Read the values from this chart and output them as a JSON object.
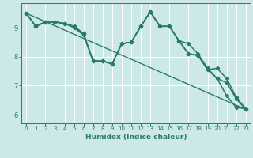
{
  "bg_color": "#cce8e8",
  "grid_color": "#ffffff",
  "line_color": "#2a7a6a",
  "xlabel": "Humidex (Indice chaleur)",
  "xlim": [
    -0.5,
    23.5
  ],
  "ylim": [
    5.7,
    9.85
  ],
  "yticks": [
    6,
    7,
    8,
    9
  ],
  "xticks": [
    0,
    1,
    2,
    3,
    4,
    5,
    6,
    7,
    8,
    9,
    10,
    11,
    12,
    13,
    14,
    15,
    16,
    17,
    18,
    19,
    20,
    21,
    22,
    23
  ],
  "lines": [
    {
      "x": [
        0,
        1,
        2,
        3,
        4,
        5,
        6,
        7,
        8,
        9,
        10,
        11,
        12,
        13,
        14,
        15,
        16,
        17,
        18,
        19,
        20,
        21,
        22,
        23
      ],
      "y": [
        9.5,
        9.05,
        9.2,
        9.2,
        9.15,
        9.05,
        8.8,
        7.85,
        7.85,
        7.75,
        8.45,
        8.5,
        9.05,
        9.55,
        9.05,
        9.05,
        8.55,
        8.1,
        8.05,
        7.55,
        7.6,
        7.25,
        6.6,
        6.2
      ],
      "marker": "D",
      "markersize": 2.2,
      "linewidth": 1.1
    },
    {
      "x": [
        0,
        1,
        2,
        3,
        4,
        5,
        6,
        7,
        8,
        9,
        10,
        11,
        12,
        13,
        14,
        15,
        16,
        17,
        18,
        19,
        20,
        21,
        22,
        23
      ],
      "y": [
        9.5,
        9.05,
        9.2,
        9.2,
        9.15,
        9.05,
        8.8,
        7.85,
        7.85,
        7.75,
        8.45,
        8.5,
        9.05,
        9.55,
        9.05,
        9.05,
        8.55,
        8.1,
        8.05,
        7.55,
        7.25,
        7.1,
        6.55,
        6.18
      ],
      "marker": "D",
      "markersize": 2.2,
      "linewidth": 1.1
    },
    {
      "x": [
        0,
        23
      ],
      "y": [
        9.5,
        6.18
      ],
      "marker": null,
      "markersize": 0,
      "linewidth": 1.0
    },
    {
      "x": [
        0,
        1,
        2,
        3,
        4,
        5,
        6,
        7,
        8,
        9,
        10,
        11,
        12,
        13,
        14,
        15,
        16,
        17,
        18,
        19,
        20,
        21,
        22,
        23
      ],
      "y": [
        9.5,
        9.05,
        9.2,
        9.2,
        9.15,
        9.0,
        8.75,
        7.85,
        7.85,
        7.75,
        8.45,
        8.5,
        9.05,
        9.55,
        9.05,
        9.05,
        8.55,
        8.45,
        8.1,
        7.6,
        7.25,
        6.65,
        6.25,
        6.2
      ],
      "marker": "D",
      "markersize": 2.2,
      "linewidth": 1.1
    }
  ]
}
